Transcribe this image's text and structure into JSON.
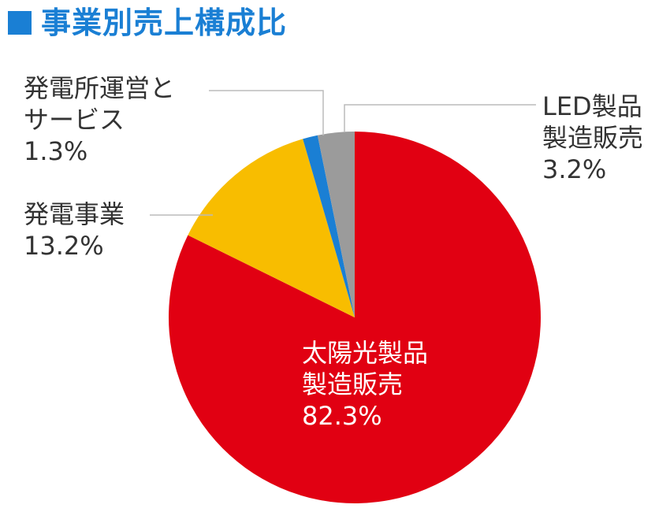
{
  "title": "事業別売上構成比",
  "chart_data": {
    "type": "pie",
    "start_at": "12 o'clock, clockwise",
    "slices": [
      {
        "label_lines": [
          "太陽光製品",
          "製造販売"
        ],
        "value": 82.3,
        "value_text": "82.3%",
        "color": "#e10012"
      },
      {
        "label_lines": [
          "発電事業"
        ],
        "value": 13.2,
        "value_text": "13.2%",
        "color": "#f8bd00"
      },
      {
        "label_lines": [
          "発電所運営と",
          "サービス"
        ],
        "value": 1.3,
        "value_text": "1.3%",
        "color": "#1a7fd4"
      },
      {
        "label_lines": [
          "LED製品",
          "製造販売"
        ],
        "value": 3.2,
        "value_text": "3.2%",
        "color": "#9b9b9b"
      }
    ]
  },
  "colors": {
    "title": "#1a7fd4",
    "label_text": "#333333",
    "leader_line": "#bbbbbb"
  }
}
